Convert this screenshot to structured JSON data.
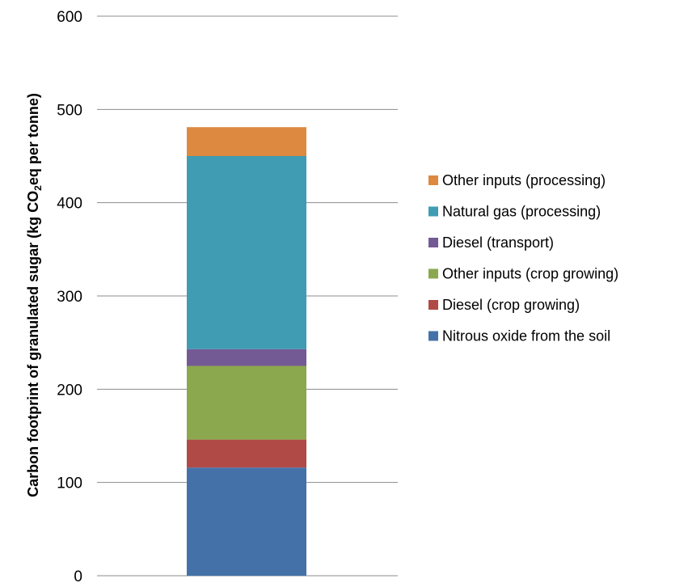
{
  "chart_data": {
    "type": "bar",
    "stacked": true,
    "categories": [
      ""
    ],
    "ylabel_parts": [
      "Carbon footprint of granulated sugar (kg CO",
      "2",
      "eq per tonne)"
    ],
    "ylim": [
      0,
      600
    ],
    "yticks": [
      0,
      100,
      200,
      300,
      400,
      500,
      600
    ],
    "grid": true,
    "legend_position": "right",
    "series": [
      {
        "name": "Nitrous oxide from the soil",
        "values": [
          116
        ],
        "color": "#4472a8"
      },
      {
        "name": "Diesel (crop growing)",
        "values": [
          30
        ],
        "color": "#b04a46"
      },
      {
        "name": "Other inputs (crop growing)",
        "values": [
          79
        ],
        "color": "#8ca84e"
      },
      {
        "name": "Diesel (transport)",
        "values": [
          18
        ],
        "color": "#735a94"
      },
      {
        "name": "Natural gas (processing)",
        "values": [
          207
        ],
        "color": "#3f9cb3"
      },
      {
        "name": "Other inputs (processing)",
        "values": [
          31
        ],
        "color": "#dd8a40"
      }
    ]
  }
}
